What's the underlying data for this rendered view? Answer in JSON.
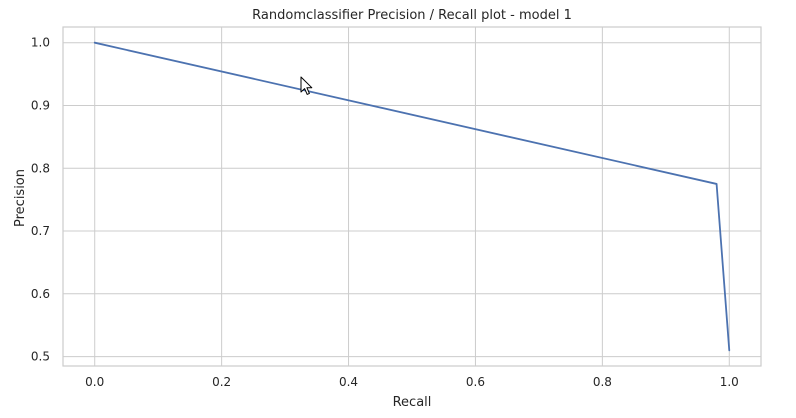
{
  "chart_data": {
    "type": "line",
    "title": "Randomclassifier Precision / Recall plot - model 1",
    "xlabel": "Recall",
    "ylabel": "Precision",
    "xlim": [
      -0.05,
      1.05
    ],
    "ylim": [
      0.485,
      1.025
    ],
    "xticks": [
      0.0,
      0.2,
      0.4,
      0.6,
      0.8,
      1.0
    ],
    "xtick_labels": [
      "0.0",
      "0.2",
      "0.4",
      "0.6",
      "0.8",
      "1.0"
    ],
    "yticks": [
      0.5,
      0.6,
      0.7,
      0.8,
      0.9,
      1.0
    ],
    "ytick_labels": [
      "0.5",
      "0.6",
      "0.7",
      "0.8",
      "0.9",
      "1.0"
    ],
    "grid": true,
    "series": [
      {
        "color": "#4c72b0",
        "x": [
          0.0,
          0.98,
          1.0
        ],
        "y": [
          1.0,
          0.775,
          0.51
        ]
      }
    ]
  },
  "cursor": {
    "icon": "mouse-pointer-icon"
  }
}
